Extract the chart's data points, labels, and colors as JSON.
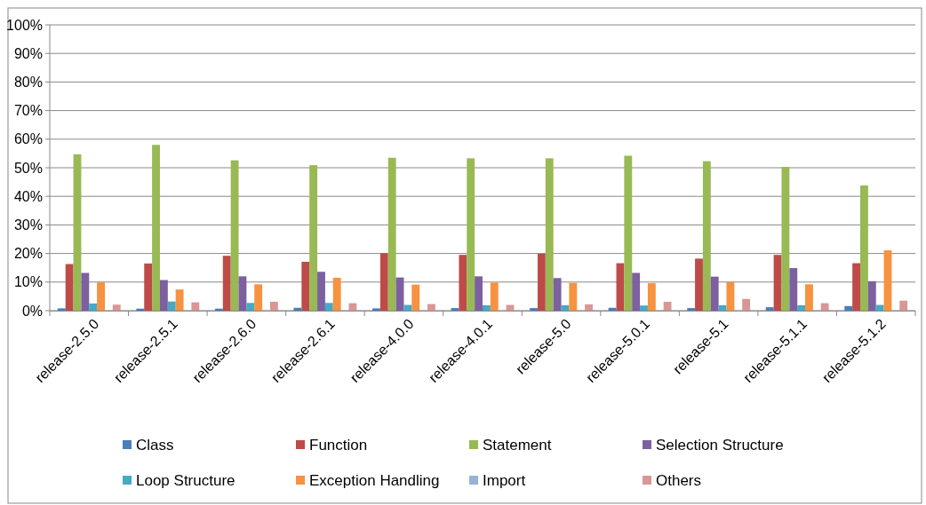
{
  "chart_data": {
    "type": "bar",
    "categories": [
      "release-2.5.0",
      "release-2.5.1",
      "release-2.6.0",
      "release-2.6.1",
      "release-4.0.0",
      "release-4.0.1",
      "release-5.0",
      "release-5.0.1",
      "release-5.1",
      "release-5.1.1",
      "release-5.1.2"
    ],
    "series": [
      {
        "name": "Class",
        "color": "#4a7ebb",
        "values": [
          0.8,
          0.7,
          0.7,
          1,
          0.8,
          0.9,
          0.9,
          1,
          0.9,
          1.2,
          1.6
        ]
      },
      {
        "name": "Function",
        "color": "#be4b48",
        "values": [
          16.3,
          16.5,
          19.2,
          17.1,
          20.1,
          19.5,
          19.9,
          16.6,
          18.2,
          19.5,
          16.6
        ]
      },
      {
        "name": "Statement",
        "color": "#98b954",
        "values": [
          54.7,
          58,
          52.6,
          50.9,
          53.5,
          53.3,
          53.3,
          54.2,
          52.3,
          50.3,
          43.8
        ]
      },
      {
        "name": "Selection Structure",
        "color": "#7d60a0",
        "values": [
          13.2,
          10.7,
          12,
          13.6,
          11.6,
          12,
          11.4,
          13.2,
          11.9,
          14.9,
          10.3
        ]
      },
      {
        "name": "Loop Structure",
        "color": "#46aac5",
        "values": [
          2.5,
          3.2,
          2.7,
          2.7,
          2,
          1.9,
          1.9,
          1.8,
          1.9,
          1.9,
          2
        ]
      },
      {
        "name": "Exception Handling",
        "color": "#f69240",
        "values": [
          9.9,
          7.4,
          9.2,
          11.5,
          9.1,
          9.8,
          9.7,
          9.6,
          10,
          9.2,
          21.1
        ]
      },
      {
        "name": "Import",
        "color": "#95b3d7",
        "values": [
          0,
          0,
          0,
          0,
          0,
          0,
          0,
          0,
          0,
          0,
          0
        ]
      },
      {
        "name": "Others",
        "color": "#d99694",
        "values": [
          2.1,
          2.9,
          3.1,
          2.6,
          2.3,
          2,
          2.2,
          3.1,
          4.1,
          2.6,
          3.5
        ]
      }
    ],
    "ylim": [
      0,
      100
    ],
    "yticks": [
      {
        "value": 0,
        "label": "0%"
      },
      {
        "value": 10,
        "label": "10%"
      },
      {
        "value": 20,
        "label": "20%"
      },
      {
        "value": 30,
        "label": "30%"
      },
      {
        "value": 40,
        "label": "40%"
      },
      {
        "value": 50,
        "label": "50%"
      },
      {
        "value": 60,
        "label": "60%"
      },
      {
        "value": 70,
        "label": "70%"
      },
      {
        "value": 80,
        "label": "80%"
      },
      {
        "value": 90,
        "label": "90%"
      },
      {
        "value": 100,
        "label": "100%"
      }
    ],
    "grid": "y",
    "legend": "bottom"
  }
}
